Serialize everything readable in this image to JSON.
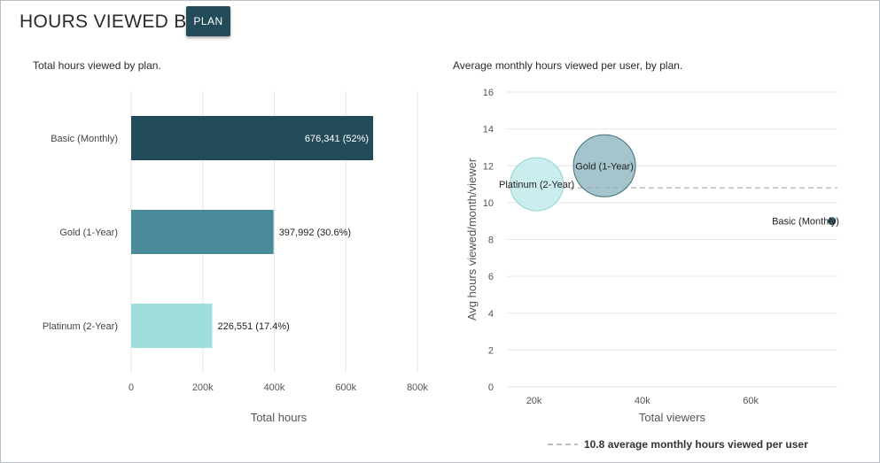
{
  "header": {
    "title": "HOURS VIEWED BY",
    "plan_button_label": "PLAN"
  },
  "colors": {
    "basic": "#244b59",
    "gold": "#4a8b9a",
    "platinum": "#9fdcdc",
    "gold_bubble": "#8fb5bf",
    "platinum_bubble": "#bfe9ea",
    "gridline": "#e6e6e6",
    "reference_line": "#bdbdbd"
  },
  "chart_data": [
    {
      "type": "bar",
      "orientation": "horizontal",
      "title": "Total hours viewed by plan.",
      "xlabel": "Total hours",
      "ylabel": "",
      "categories": [
        "Basic (Monthly)",
        "Gold (1-Year)",
        "Platinum (2-Year)"
      ],
      "values": [
        676341,
        397992,
        226551
      ],
      "data_labels": [
        "676,341 (52%)",
        "397,992 (30.6%)",
        "226,551 (17.4%)"
      ],
      "xlim": [
        0,
        800000
      ],
      "xticks": [
        0,
        200000,
        400000,
        600000,
        800000
      ],
      "xtick_labels": [
        "0",
        "200k",
        "400k",
        "600k",
        "800k"
      ],
      "grid": true
    },
    {
      "type": "scatter",
      "subtype": "bubble",
      "title": "Average monthly hours viewed per user, by plan.",
      "xlabel": "Total viewers",
      "ylabel": "Avg hours viewed/month/viewer",
      "points": [
        {
          "label": "Platinum (2-Year)",
          "x": 20500,
          "y": 11.0,
          "size": 226551
        },
        {
          "label": "Gold (1-Year)",
          "x": 33000,
          "y": 12.0,
          "size": 397992
        },
        {
          "label": "Basic (Monthly)",
          "x": 75000,
          "y": 9.0,
          "size": 676341
        }
      ],
      "xlim": [
        15000,
        76000
      ],
      "ylim": [
        0,
        16
      ],
      "xticks": [
        20000,
        40000,
        60000
      ],
      "xtick_labels": [
        "20k",
        "40k",
        "60k"
      ],
      "yticks": [
        0,
        2,
        4,
        6,
        8,
        10,
        12,
        14,
        16
      ],
      "ytick_labels": [
        "0",
        "2",
        "4",
        "6",
        "8",
        "10",
        "12",
        "14",
        "16"
      ],
      "reference_line": {
        "y": 10.8
      },
      "legend": "10.8 average monthly hours viewed per user",
      "grid": true
    }
  ]
}
